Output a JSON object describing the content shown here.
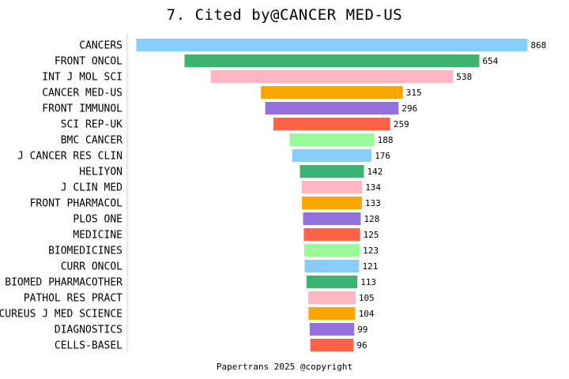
{
  "title": "7. Cited by@CANCER MED-US",
  "footer": "Papertrans 2025 @copyright",
  "chart_data": {
    "type": "bar",
    "orientation": "horizontal",
    "layout": "centered-funnel",
    "title": "7. Cited by@CANCER MED-US",
    "xlabel": "",
    "ylabel": "",
    "grid": false,
    "legend": "none",
    "categories": [
      "CANCERS",
      "FRONT ONCOL",
      "INT J MOL SCI",
      "CANCER MED-US",
      "FRONT IMMUNOL",
      "SCI REP-UK",
      "BMC CANCER",
      "J CANCER RES CLIN",
      "HELIYON",
      "J CLIN MED",
      "FRONT PHARMACOL",
      "PLOS ONE",
      "MEDICINE",
      "BIOMEDICINES",
      "CURR ONCOL",
      "BIOMED PHARMACOTHER",
      "PATHOL RES PRACT",
      "CUREUS J MED SCIENCE",
      "DIAGNOSTICS",
      "CELLS-BASEL"
    ],
    "values": [
      868,
      654,
      538,
      315,
      296,
      259,
      188,
      176,
      142,
      134,
      133,
      128,
      125,
      123,
      121,
      113,
      105,
      104,
      99,
      96
    ],
    "data_labels": [
      "868",
      "654",
      "538",
      "315",
      "296",
      "259",
      "188",
      "176",
      "142",
      "134",
      "133",
      "128",
      "125",
      "123",
      "121",
      "113",
      "105",
      "104",
      "99",
      "96"
    ],
    "colors": [
      "#87CEFA",
      "#3CB371",
      "#FFB6C1",
      "#FFA500",
      "#9370DB",
      "#FF6347",
      "#98FB98"
    ],
    "xlim": [
      0,
      868
    ]
  }
}
